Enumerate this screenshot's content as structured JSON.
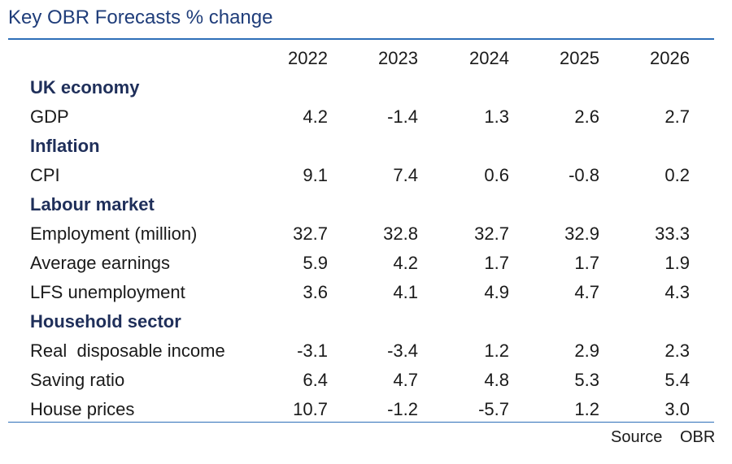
{
  "title": "Key OBR Forecasts % change",
  "years": [
    "2022",
    "2023",
    "2024",
    "2025",
    "2026"
  ],
  "sections": [
    {
      "heading": "UK economy",
      "rows": [
        {
          "label": "GDP",
          "values": [
            "4.2",
            "-1.4",
            "1.3",
            "2.6",
            "2.7"
          ]
        }
      ]
    },
    {
      "heading": "Inflation",
      "rows": [
        {
          "label": "CPI",
          "values": [
            "9.1",
            "7.4",
            "0.6",
            "-0.8",
            "0.2"
          ]
        }
      ]
    },
    {
      "heading": "Labour market",
      "rows": [
        {
          "label": "Employment (million)",
          "values": [
            "32.7",
            "32.8",
            "32.7",
            "32.9",
            "33.3"
          ]
        },
        {
          "label": "Average earnings",
          "values": [
            "5.9",
            "4.2",
            "1.7",
            "1.7",
            "1.9"
          ]
        },
        {
          "label": "LFS unemployment",
          "values": [
            "3.6",
            "4.1",
            "4.9",
            "4.7",
            "4.3"
          ]
        }
      ]
    },
    {
      "heading": "Household sector",
      "rows": [
        {
          "label": "Real  disposable income",
          "values": [
            "-3.1",
            "-3.4",
            "1.2",
            "2.9",
            "2.3"
          ]
        },
        {
          "label": "Saving ratio",
          "values": [
            "6.4",
            "4.7",
            "4.8",
            "5.3",
            "5.4"
          ]
        },
        {
          "label": "House prices",
          "values": [
            "10.7",
            "-1.2",
            "-5.7",
            "1.2",
            "3.0"
          ]
        }
      ]
    }
  ],
  "source": {
    "label": "Source",
    "value": "OBR"
  }
}
